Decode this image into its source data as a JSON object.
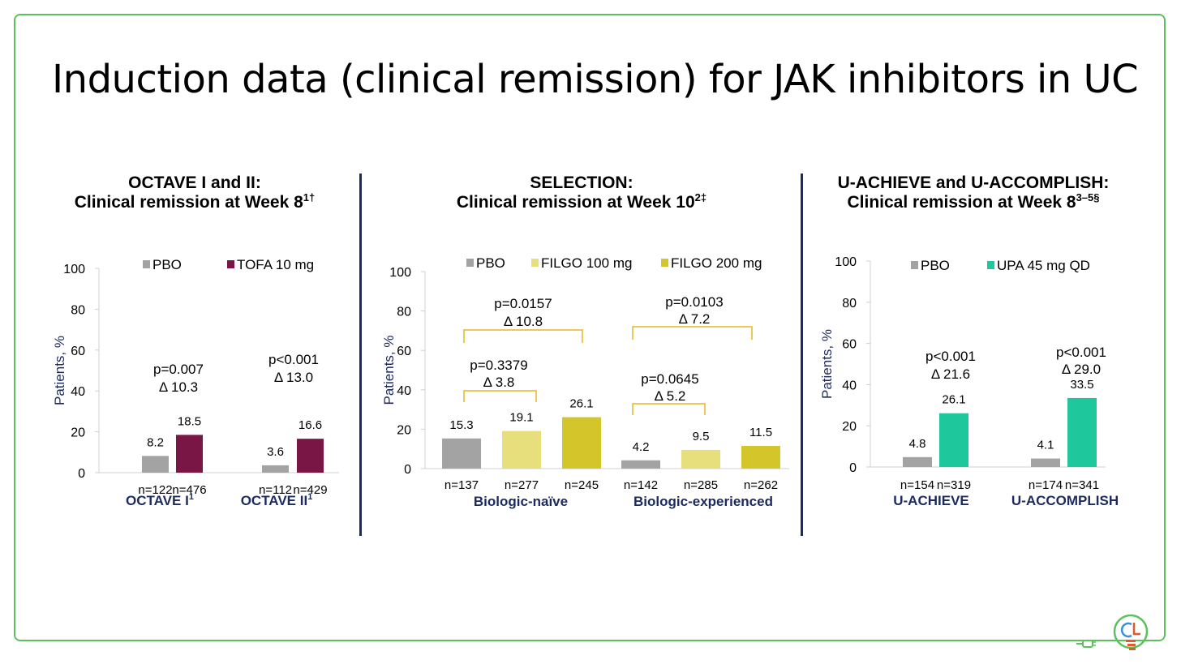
{
  "title": "Induction data (clinical remission) for JAK inhibitors in UC",
  "colors": {
    "pbo": "#a3a3a3",
    "tofa": "#7a1645",
    "filgo100": "#e6df7b",
    "filgo200": "#d4c52a",
    "upa": "#1ec79c",
    "bracket": "#e6b820",
    "axis": "#1c2a5e",
    "frame": "#5cc15c"
  },
  "chart_data": [
    {
      "type": "bar",
      "title_line1": "OCTAVE I and II:",
      "title_line2": "Clinical remission at Week 8",
      "title_sup": "1†",
      "ylabel": "Patients, %",
      "ylim": [
        0,
        100
      ],
      "yticks": [
        "0",
        "20",
        "40",
        "60",
        "80",
        "100"
      ],
      "legend": [
        "PBO",
        "TOFA 10 mg"
      ],
      "groups": [
        {
          "label": "OCTAVE I",
          "label_sup": "1",
          "bars": [
            {
              "value": 8.2,
              "label": "8.2",
              "n": "n=122"
            },
            {
              "value": 18.5,
              "label": "18.5",
              "n": "n=476"
            }
          ]
        },
        {
          "label": "OCTAVE II",
          "label_sup": "1",
          "bars": [
            {
              "value": 3.6,
              "label": "3.6",
              "n": "n=112"
            },
            {
              "value": 16.6,
              "label": "16.6",
              "n": "n=429"
            }
          ]
        }
      ],
      "annotations": [
        {
          "p": "p=0.007",
          "delta": "Δ 10.3"
        },
        {
          "p": "p<0.001",
          "delta": "Δ 13.0"
        }
      ]
    },
    {
      "type": "bar",
      "title_line1": "SELECTION:",
      "title_line2": "Clinical remission at Week 10",
      "title_sup": "2‡",
      "ylabel": "Patients, %",
      "ylim": [
        0,
        100
      ],
      "yticks": [
        "0",
        "20",
        "40",
        "60",
        "80",
        "100"
      ],
      "legend": [
        "PBO",
        "FILGO 100 mg",
        "FILGO 200 mg"
      ],
      "groups": [
        {
          "label": "Biologic-naïve",
          "bars": [
            {
              "value": 15.3,
              "label": "15.3",
              "n": "n=137"
            },
            {
              "value": 19.1,
              "label": "19.1",
              "n": "n=277"
            },
            {
              "value": 26.1,
              "label": "26.1",
              "n": "n=245"
            }
          ]
        },
        {
          "label": "Biologic-experienced",
          "bars": [
            {
              "value": 4.2,
              "label": "4.2",
              "n": "n=142"
            },
            {
              "value": 9.5,
              "label": "9.5",
              "n": "n=285"
            },
            {
              "value": 11.5,
              "label": "11.5",
              "n": "n=262"
            }
          ]
        }
      ],
      "annotations": [
        {
          "p": "p=0.3379",
          "delta": "Δ 3.8"
        },
        {
          "p": "p=0.0157",
          "delta": "Δ 10.8"
        },
        {
          "p": "p=0.0645",
          "delta": "Δ 5.2"
        },
        {
          "p": "p=0.0103",
          "delta": "Δ 7.2"
        }
      ]
    },
    {
      "type": "bar",
      "title_line1": "U-ACHIEVE and U-ACCOMPLISH:",
      "title_line2": "Clinical remission at Week 8",
      "title_sup": "3–5§",
      "ylabel": "Patients, %",
      "ylim": [
        0,
        100
      ],
      "yticks": [
        "0",
        "20",
        "40",
        "60",
        "80",
        "100"
      ],
      "legend": [
        "PBO",
        "UPA 45 mg QD"
      ],
      "groups": [
        {
          "label": "U-ACHIEVE",
          "bars": [
            {
              "value": 4.8,
              "label": "4.8",
              "n": "n=154"
            },
            {
              "value": 26.1,
              "label": "26.1",
              "n": "n=319"
            }
          ]
        },
        {
          "label": "U-ACCOMPLISH",
          "bars": [
            {
              "value": 4.1,
              "label": "4.1",
              "n": "n=174"
            },
            {
              "value": 33.5,
              "label": "33.5",
              "n": "n=341"
            }
          ]
        }
      ],
      "annotations": [
        {
          "p": "p<0.001",
          "delta": "Δ 21.6"
        },
        {
          "p": "p<0.001",
          "delta": "Δ 29.0"
        }
      ]
    }
  ]
}
